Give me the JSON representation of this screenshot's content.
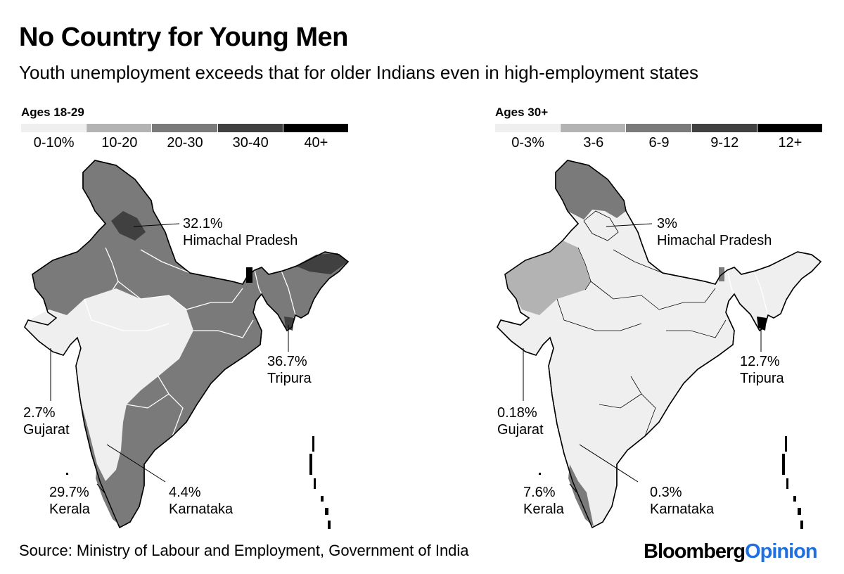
{
  "title": "No Country for Young Men",
  "subtitle": "Youth unemployment exceeds that for older Indians even in high-employment states",
  "colors": {
    "bin1": "#efefef",
    "bin2": "#b3b3b3",
    "bin3": "#7a7a7a",
    "bin4": "#404040",
    "bin5": "#000000",
    "brand_blue": "#1f6fe0"
  },
  "maps": [
    {
      "legend_title": "Ages 18-29",
      "bins": [
        "0-10%",
        "10-20",
        "20-30",
        "30-40",
        "40+"
      ],
      "annotations": [
        {
          "value": "32.1%",
          "state": "Himachal Pradesh"
        },
        {
          "value": "36.7%",
          "state": "Tripura"
        },
        {
          "value": "2.7%",
          "state": "Gujarat"
        },
        {
          "value": "29.7%",
          "state": "Kerala"
        },
        {
          "value": "4.4%",
          "state": "Karnataka"
        }
      ]
    },
    {
      "legend_title": "Ages 30+",
      "bins": [
        "0-3%",
        "3-6",
        "6-9",
        "9-12",
        "12+"
      ],
      "annotations": [
        {
          "value": "3%",
          "state": "Himachal Pradesh"
        },
        {
          "value": "12.7%",
          "state": "Tripura"
        },
        {
          "value": "0.18%",
          "state": "Gujarat"
        },
        {
          "value": "7.6%",
          "state": "Kerala"
        },
        {
          "value": "0.3%",
          "state": "Karnataka"
        }
      ]
    }
  ],
  "source": "Source: Ministry of Labour and Employment, Government of India",
  "logo": {
    "part1": "Bloomberg",
    "part2": "Opinion"
  }
}
